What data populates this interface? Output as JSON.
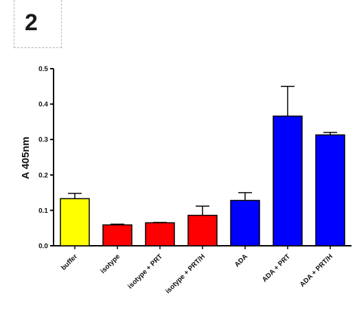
{
  "panel_label": "2",
  "chart_data": {
    "type": "bar",
    "title": "",
    "xlabel": "",
    "ylabel": "A 405nm",
    "ylim": [
      0,
      0.5
    ],
    "yticks": [
      "0.0",
      "0.1",
      "0.2",
      "0.3",
      "0.4",
      "0.5"
    ],
    "categories": [
      "buffer",
      "isotype",
      "isotype + PRT",
      "isotype + PRT/H",
      "ADA",
      "ADA + PRT",
      "ADA + PRT/H"
    ],
    "values": [
      0.133,
      0.059,
      0.065,
      0.086,
      0.128,
      0.366,
      0.313
    ],
    "errors": [
      0.015,
      0.002,
      0.001,
      0.026,
      0.022,
      0.084,
      0.007
    ],
    "colors": [
      "#ffff00",
      "#ff0000",
      "#ff0000",
      "#ff0000",
      "#0000ff",
      "#0000ff",
      "#0000ff"
    ],
    "grid": false
  }
}
